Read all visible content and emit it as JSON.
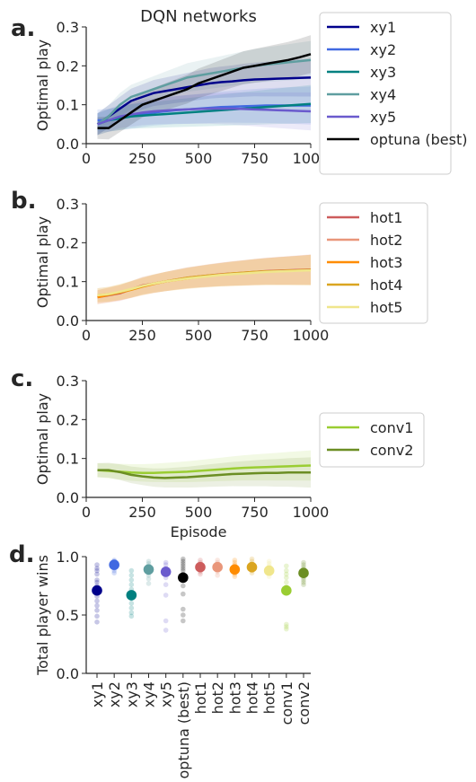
{
  "chart_data": [
    {
      "type": "line",
      "panel": "a.",
      "title": "DQN networks",
      "xlabel": "",
      "ylabel": "Optimal play",
      "xlim": [
        0,
        1000
      ],
      "ylim": [
        0,
        0.3
      ],
      "xticks": [
        0,
        250,
        500,
        750,
        1000
      ],
      "yticks": [
        0.0,
        0.1,
        0.2,
        0.3
      ],
      "x": [
        50,
        100,
        150,
        200,
        250,
        300,
        350,
        400,
        450,
        500,
        550,
        600,
        650,
        700,
        750,
        800,
        850,
        900,
        950,
        1000
      ],
      "legend": "right",
      "series": [
        {
          "name": "xy1",
          "color": "#00008b",
          "values": [
            0.05,
            0.07,
            0.09,
            0.11,
            0.12,
            0.13,
            0.135,
            0.14,
            0.145,
            0.15,
            0.155,
            0.158,
            0.16,
            0.163,
            0.165,
            0.166,
            0.167,
            0.168,
            0.169,
            0.17
          ]
        },
        {
          "name": "xy2",
          "color": "#4169e1",
          "values": [
            0.06,
            0.06,
            0.065,
            0.07,
            0.075,
            0.08,
            0.083,
            0.086,
            0.088,
            0.09,
            0.092,
            0.094,
            0.095,
            0.096,
            0.097,
            0.098,
            0.098,
            0.098,
            0.098,
            0.098
          ]
        },
        {
          "name": "xy3",
          "color": "#008080",
          "values": [
            0.05,
            0.06,
            0.065,
            0.07,
            0.072,
            0.074,
            0.076,
            0.078,
            0.08,
            0.082,
            0.084,
            0.086,
            0.088,
            0.09,
            0.092,
            0.094,
            0.096,
            0.098,
            0.1,
            0.102
          ]
        },
        {
          "name": "xy4",
          "color": "#5f9ea0",
          "values": [
            0.05,
            0.07,
            0.1,
            0.12,
            0.13,
            0.14,
            0.15,
            0.16,
            0.17,
            0.175,
            0.18,
            0.185,
            0.19,
            0.195,
            0.2,
            0.203,
            0.206,
            0.209,
            0.212,
            0.215
          ]
        },
        {
          "name": "xy5",
          "color": "#6a5acd",
          "values": [
            0.05,
            0.06,
            0.07,
            0.075,
            0.08,
            0.083,
            0.085,
            0.087,
            0.088,
            0.089,
            0.09,
            0.09,
            0.09,
            0.089,
            0.088,
            0.087,
            0.086,
            0.085,
            0.084,
            0.083
          ]
        },
        {
          "name": "optuna (best)",
          "color": "#000000",
          "values": [
            0.04,
            0.04,
            0.06,
            0.08,
            0.1,
            0.11,
            0.12,
            0.13,
            0.14,
            0.155,
            0.165,
            0.175,
            0.185,
            0.195,
            0.2,
            0.205,
            0.21,
            0.215,
            0.222,
            0.23
          ]
        }
      ]
    },
    {
      "type": "line",
      "panel": "b.",
      "xlabel": "",
      "ylabel": "Optimal play",
      "xlim": [
        0,
        1000
      ],
      "ylim": [
        0,
        0.3
      ],
      "xticks": [
        0,
        250,
        500,
        750,
        1000
      ],
      "yticks": [
        0.0,
        0.1,
        0.2,
        0.3
      ],
      "x": [
        50,
        100,
        150,
        200,
        250,
        300,
        350,
        400,
        450,
        500,
        550,
        600,
        650,
        700,
        750,
        800,
        850,
        900,
        950,
        1000
      ],
      "legend": "right",
      "series": [
        {
          "name": "hot1",
          "color": "#cd5c5c",
          "values": [
            0.06,
            0.065,
            0.07,
            0.08,
            0.09,
            0.095,
            0.1,
            0.105,
            0.11,
            0.113,
            0.116,
            0.119,
            0.121,
            0.123,
            0.125,
            0.127,
            0.128,
            0.129,
            0.13,
            0.131
          ]
        },
        {
          "name": "hot2",
          "color": "#e9967a",
          "values": [
            0.065,
            0.068,
            0.072,
            0.08,
            0.088,
            0.094,
            0.1,
            0.105,
            0.109,
            0.112,
            0.115,
            0.118,
            0.12,
            0.122,
            0.124,
            0.126,
            0.127,
            0.128,
            0.129,
            0.13
          ]
        },
        {
          "name": "hot3",
          "color": "#ff8c00",
          "values": [
            0.06,
            0.066,
            0.072,
            0.079,
            0.087,
            0.094,
            0.1,
            0.104,
            0.108,
            0.112,
            0.115,
            0.118,
            0.12,
            0.122,
            0.124,
            0.126,
            0.127,
            0.128,
            0.129,
            0.13
          ]
        },
        {
          "name": "hot4",
          "color": "#daa520",
          "values": [
            0.065,
            0.067,
            0.073,
            0.08,
            0.088,
            0.095,
            0.1,
            0.105,
            0.11,
            0.113,
            0.116,
            0.118,
            0.121,
            0.123,
            0.125,
            0.126,
            0.127,
            0.128,
            0.129,
            0.13
          ]
        },
        {
          "name": "hot5",
          "color": "#f0e68c",
          "values": [
            0.065,
            0.068,
            0.074,
            0.081,
            0.089,
            0.095,
            0.1,
            0.104,
            0.108,
            0.111,
            0.114,
            0.117,
            0.119,
            0.121,
            0.123,
            0.125,
            0.126,
            0.127,
            0.128,
            0.129
          ]
        }
      ]
    },
    {
      "type": "line",
      "panel": "c.",
      "xlabel": "Episode",
      "ylabel": "Optimal play",
      "xlim": [
        0,
        1000
      ],
      "ylim": [
        0,
        0.3
      ],
      "xticks": [
        0,
        250,
        500,
        750,
        1000
      ],
      "yticks": [
        0.0,
        0.1,
        0.2,
        0.3
      ],
      "x": [
        50,
        100,
        150,
        200,
        250,
        300,
        350,
        400,
        450,
        500,
        550,
        600,
        650,
        700,
        750,
        800,
        850,
        900,
        950,
        1000
      ],
      "legend": "right",
      "series": [
        {
          "name": "conv1",
          "color": "#9acd32",
          "values": [
            0.07,
            0.068,
            0.066,
            0.064,
            0.063,
            0.063,
            0.064,
            0.065,
            0.066,
            0.068,
            0.07,
            0.072,
            0.074,
            0.076,
            0.077,
            0.078,
            0.079,
            0.08,
            0.081,
            0.082
          ]
        },
        {
          "name": "conv2",
          "color": "#6b8e23",
          "values": [
            0.07,
            0.07,
            0.065,
            0.058,
            0.054,
            0.051,
            0.05,
            0.051,
            0.052,
            0.054,
            0.056,
            0.058,
            0.06,
            0.061,
            0.062,
            0.063,
            0.063,
            0.064,
            0.064,
            0.064
          ]
        }
      ]
    },
    {
      "type": "scatter",
      "panel": "d.",
      "ylabel": "Total player wins",
      "ylim": [
        0,
        1.0
      ],
      "yticks": [
        0.0,
        0.5,
        1.0
      ],
      "categories": [
        "xy1",
        "xy2",
        "xy3",
        "xy4",
        "xy5",
        "optuna (best)",
        "hot1",
        "hot2",
        "hot3",
        "hot4",
        "hot5",
        "conv1",
        "conv2"
      ],
      "colors": [
        "#00008b",
        "#4169e1",
        "#008080",
        "#5f9ea0",
        "#6a5acd",
        "#000000",
        "#cd5c5c",
        "#e9967a",
        "#ff8c00",
        "#daa520",
        "#f0e68c",
        "#9acd32",
        "#6b8e23"
      ],
      "means": [
        0.71,
        0.93,
        0.67,
        0.89,
        0.87,
        0.82,
        0.91,
        0.91,
        0.89,
        0.91,
        0.88,
        0.71,
        0.86
      ],
      "runs": [
        [
          0.93,
          0.9,
          0.88,
          0.85,
          0.8,
          0.78,
          0.75,
          0.72,
          0.7,
          0.66,
          0.62,
          0.58,
          0.54,
          0.49,
          0.44
        ],
        [
          0.97,
          0.96,
          0.95,
          0.94,
          0.92,
          0.9,
          0.88,
          0.86
        ],
        [
          0.88,
          0.84,
          0.8,
          0.76,
          0.72,
          0.68,
          0.64,
          0.6,
          0.56,
          0.52,
          0.49
        ],
        [
          0.96,
          0.94,
          0.92,
          0.9,
          0.88,
          0.86,
          0.84,
          0.81,
          0.77
        ],
        [
          0.95,
          0.93,
          0.9,
          0.88,
          0.86,
          0.82,
          0.76,
          0.67,
          0.45,
          0.37
        ],
        [
          0.98,
          0.96,
          0.94,
          0.92,
          0.9,
          0.88,
          0.85,
          0.8,
          0.75,
          0.68,
          0.55,
          0.5,
          0.45
        ],
        [
          0.97,
          0.95,
          0.93,
          0.91,
          0.89,
          0.87,
          0.85
        ],
        [
          0.97,
          0.95,
          0.93,
          0.91,
          0.89,
          0.87,
          0.84
        ],
        [
          0.97,
          0.95,
          0.93,
          0.91,
          0.89,
          0.87,
          0.85,
          0.83
        ],
        [
          0.98,
          0.96,
          0.94,
          0.92,
          0.9,
          0.88,
          0.86
        ],
        [
          0.96,
          0.94,
          0.92,
          0.9,
          0.88,
          0.86,
          0.83
        ],
        [
          0.92,
          0.88,
          0.85,
          0.82,
          0.78,
          0.74,
          0.7,
          0.42,
          0.4,
          0.38
        ],
        [
          0.95,
          0.93,
          0.91,
          0.89,
          0.86,
          0.84,
          0.82,
          0.8,
          0.78,
          0.76
        ]
      ]
    }
  ]
}
